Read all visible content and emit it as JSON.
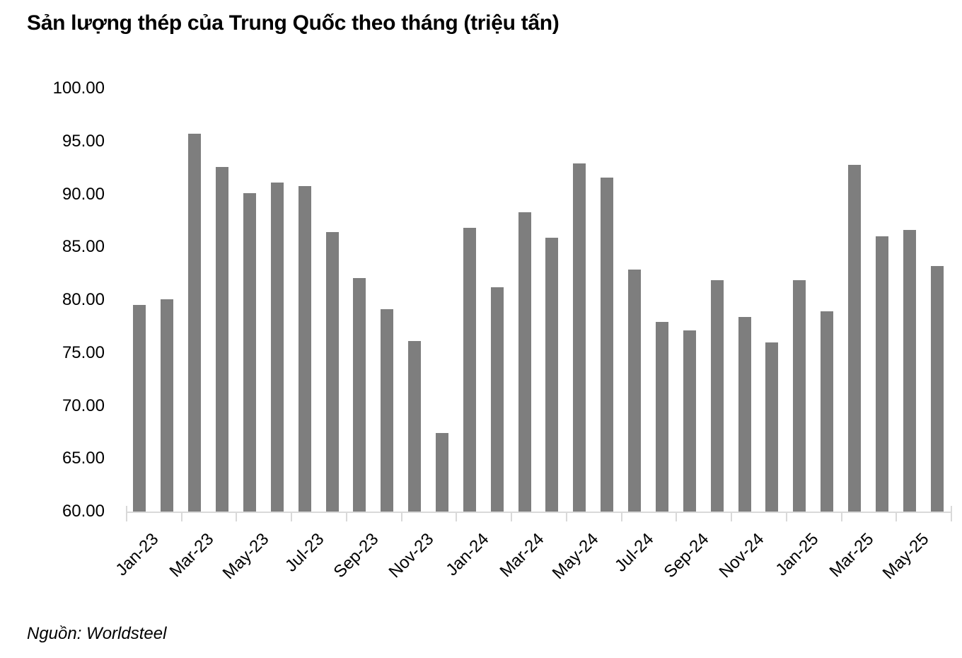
{
  "page": {
    "title": "Sản lượng thép của Trung Quốc theo tháng (triệu tấn)",
    "source": "Nguồn: Worldsteel"
  },
  "chart_data": {
    "type": "bar",
    "title": "Sản lượng thép của Trung Quốc theo tháng (triệu tấn)",
    "source": "Nguồn: Worldsteel",
    "categories": [
      "Jan-23",
      "Feb-23",
      "Mar-23",
      "Apr-23",
      "May-23",
      "Jun-23",
      "Jul-23",
      "Aug-23",
      "Sep-23",
      "Oct-23",
      "Nov-23",
      "Dec-23",
      "Jan-24",
      "Feb-24",
      "Mar-24",
      "Apr-24",
      "May-24",
      "Jun-24",
      "Jul-24",
      "Aug-24",
      "Sep-24",
      "Oct-24",
      "Nov-24",
      "Dec-24",
      "Jan-25",
      "Feb-25",
      "Mar-25",
      "Apr-25",
      "May-25",
      "Jun-25"
    ],
    "values": [
      79.5,
      80.1,
      95.7,
      92.6,
      90.1,
      91.1,
      90.8,
      86.4,
      82.1,
      79.1,
      76.1,
      67.4,
      86.8,
      81.2,
      88.3,
      85.9,
      92.9,
      91.6,
      82.9,
      77.9,
      77.1,
      81.9,
      78.4,
      76.0,
      81.9,
      78.9,
      92.8,
      86.0,
      86.6,
      83.2
    ],
    "x_tick_labels": [
      "Jan-23",
      "Mar-23",
      "May-23",
      "Jul-23",
      "Sep-23",
      "Nov-23",
      "Jan-24",
      "Mar-24",
      "May-24",
      "Jul-24",
      "Sep-24",
      "Nov-24",
      "Jan-25",
      "Mar-25",
      "May-25"
    ],
    "x_tick_step": 2,
    "ylim": [
      60,
      100
    ],
    "ytick_step": 5,
    "ytick_decimals": 2,
    "xlabel": "",
    "ylabel": "",
    "grid": "off",
    "legend": "none",
    "bar_color": "#7e7e7e",
    "axis_color": "#d9d9d9",
    "text_color": "#000000"
  }
}
